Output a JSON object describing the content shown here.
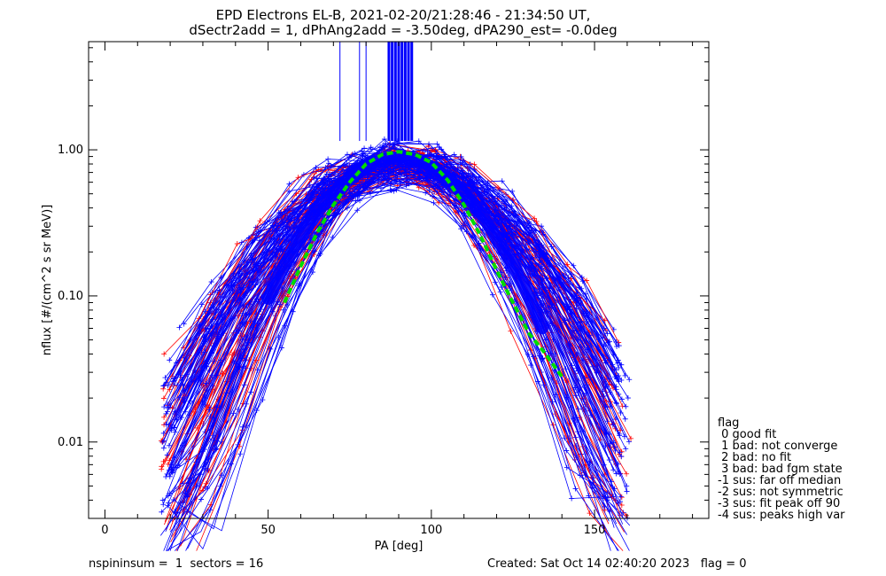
{
  "chart_data": {
    "type": "line",
    "title_line1": "EPD Electrons EL-B, 2021-02-20/21:28:46 - 21:34:50 UT,",
    "title_line2": "dSectr2add = 1, dPhAng2add = -3.50deg, dPA290_est=  -0.0deg",
    "xlabel": "PA [deg]",
    "ylabel": "nflux [#/(cm^2 s sr MeV)]",
    "xlim": [
      -5,
      185
    ],
    "ylim": [
      0.003,
      5.5
    ],
    "yscale": "log",
    "x_ticks": [
      0,
      50,
      100,
      150
    ],
    "x_tick_labels": [
      "0",
      "50",
      "100",
      "150"
    ],
    "y_ticks": [
      0.01,
      0.1,
      1.0
    ],
    "y_tick_labels": [
      "0.01",
      "0.10",
      "1.00"
    ],
    "series_colors": {
      "red": "#ff0000",
      "blue": "#0000ff",
      "fit": "#00dd00"
    },
    "envelope": {
      "peak_pa": 90,
      "peak_flux": 0.95,
      "width_deg": 22
    },
    "fit_curve": {
      "pa": [
        55,
        60,
        65,
        70,
        75,
        80,
        85,
        90,
        95,
        100,
        105,
        110,
        115,
        120,
        125,
        130,
        135,
        140
      ],
      "flux": [
        0.09,
        0.16,
        0.27,
        0.42,
        0.6,
        0.8,
        0.93,
        0.97,
        0.93,
        0.82,
        0.62,
        0.42,
        0.26,
        0.15,
        0.09,
        0.055,
        0.04,
        0.028
      ]
    },
    "footer_left": "nspininsum =  1  sectors = 16",
    "footer_right": "Created: Sat Oct 14 02:40:20 2023   flag = 0",
    "legend": {
      "title": "flag",
      "items": [
        " 0 good fit",
        " 1 bad: not converge",
        " 2 bad: no fit",
        " 3 bad: bad fgm state",
        "-1 sus: far off median",
        "-2 sus: not symmetric",
        "-3 sus: fit peak off 90",
        "-4 sus: peaks high var"
      ]
    }
  }
}
